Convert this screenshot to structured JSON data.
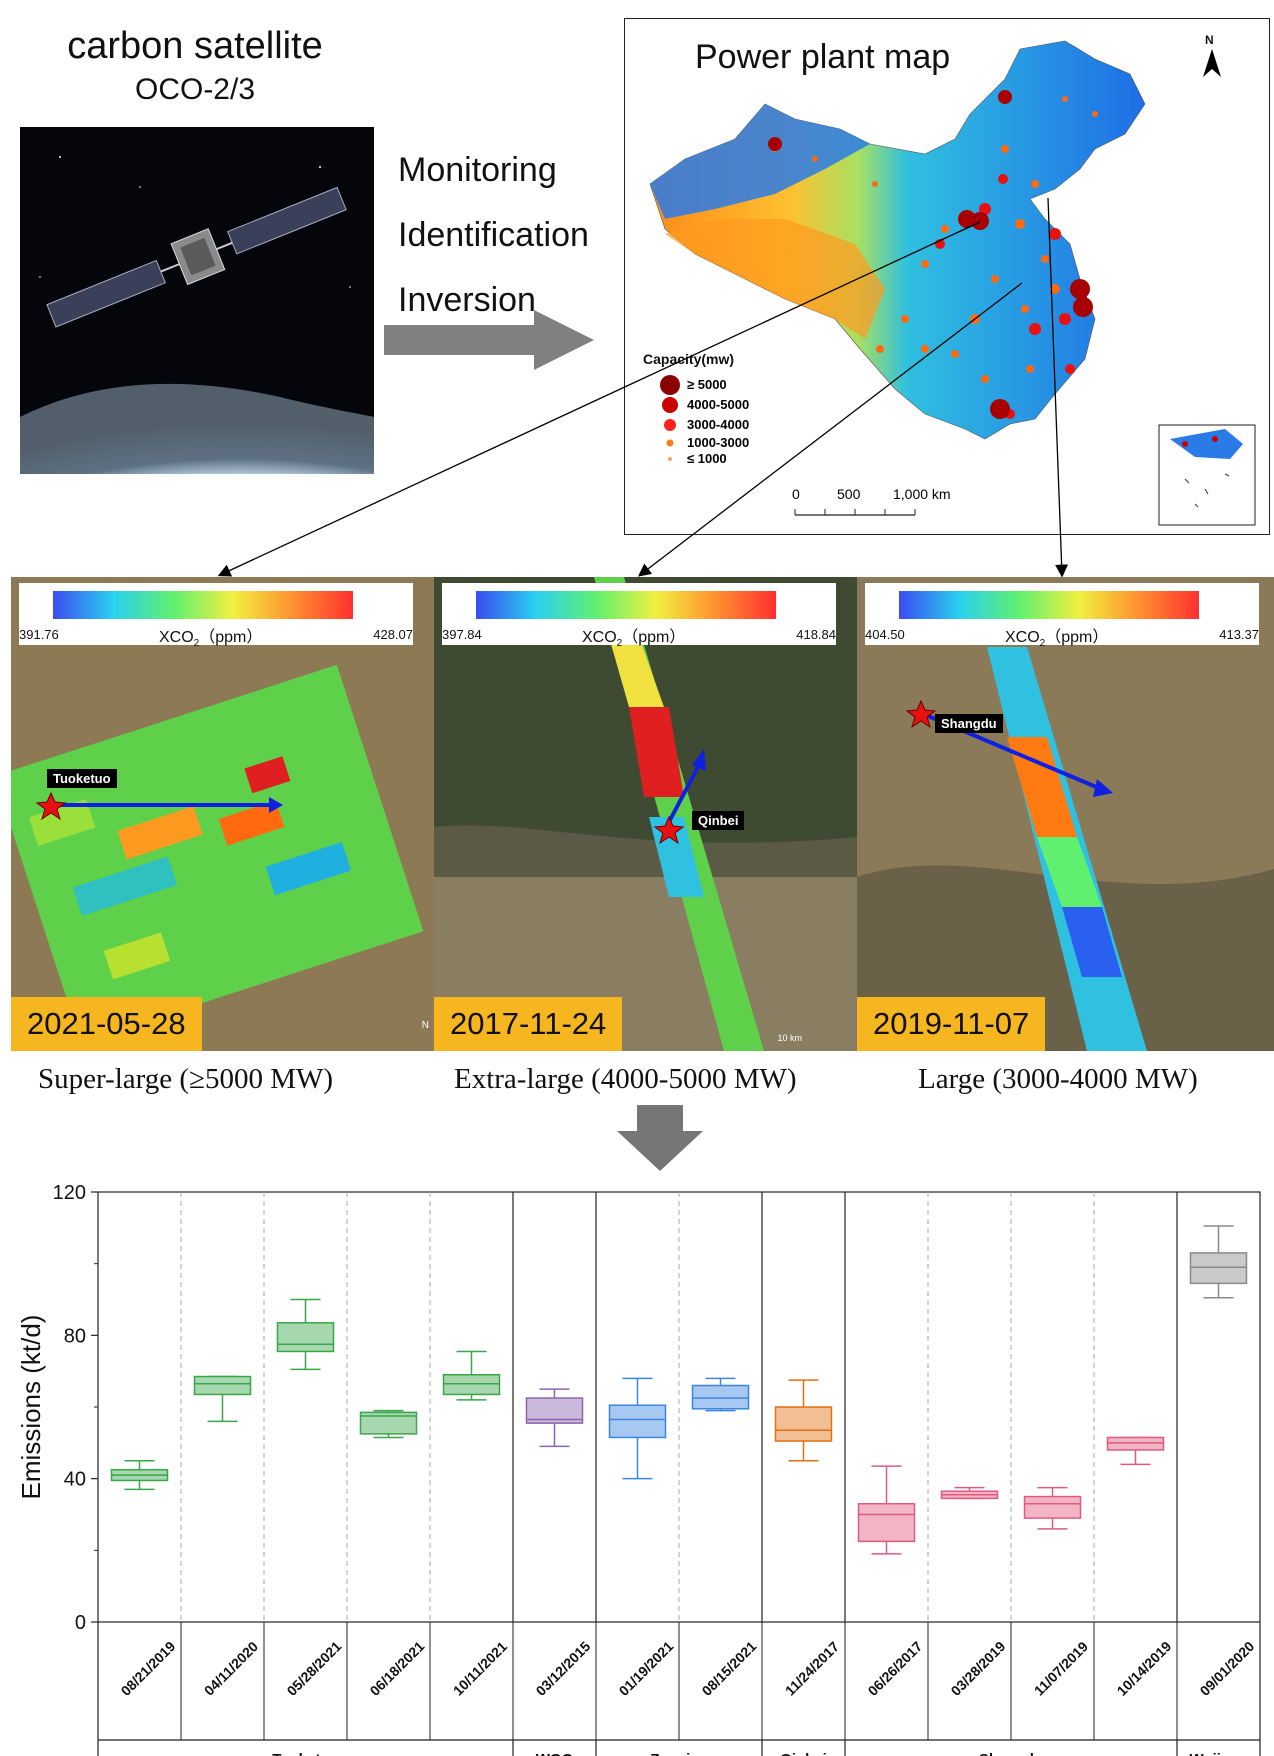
{
  "satellite": {
    "title": "carbon satellite",
    "subtitle": "OCO-2/3"
  },
  "process_steps": [
    "Monitoring",
    "Identification",
    "Inversion"
  ],
  "map": {
    "title": "Power plant map",
    "north_label": "N",
    "legend_title": "Capacity(mw)",
    "legend_items": [
      "≥ 5000",
      "4000-5000",
      "3000-4000",
      "1000-3000",
      "≤ 1000"
    ],
    "legend_colors": [
      "#8b0000",
      "#cc0000",
      "#ff2020",
      "#ff7a1a",
      "#ffa060"
    ],
    "scale_labels": [
      "0",
      "500",
      "1,000 km"
    ]
  },
  "panels": [
    {
      "date": "2021-05-28",
      "plant": "Tuoketuo",
      "cb_min": "391.76",
      "cb_max": "428.07",
      "caption": "Super-large  (≥5000 MW)"
    },
    {
      "date": "2017-11-24",
      "plant": "Qinbei",
      "cb_min": "397.84",
      "cb_max": "418.84",
      "caption": "Extra-large (4000-5000 MW)"
    },
    {
      "date": "2019-11-07",
      "plant": "Shangdu",
      "cb_min": "404.50",
      "cb_max": "413.37",
      "caption": "Large (3000-4000 MW)"
    }
  ],
  "colorbar_label": "XCO",
  "colorbar_sub": "2",
  "colorbar_unit": "（ppm）",
  "scalebar_label": "10 km",
  "chart_data": {
    "type": "box",
    "ylabel": "Emissions (kt/d)",
    "ylim": [
      0,
      120
    ],
    "yticks": [
      0,
      40,
      80,
      120
    ],
    "categories": [
      "08/21/2019",
      "04/11/2020",
      "05/28/2021",
      "06/18/2021",
      "10/11/2021",
      "03/12/2015",
      "01/19/2021",
      "08/15/2021",
      "11/24/2017",
      "06/26/2017",
      "03/28/2019",
      "11/07/2019",
      "10/14/2019",
      "09/01/2020"
    ],
    "groups": [
      {
        "name": "Tuoketuo",
        "count": 5
      },
      {
        "name": "WGQ",
        "count": 1
      },
      {
        "name": "Zouxian",
        "count": 2
      },
      {
        "name": "Qinbei",
        "count": 1
      },
      {
        "name": "Shangdu",
        "count": 4
      },
      {
        "name": "Wujiaqu",
        "count": 1
      }
    ],
    "boxes": [
      {
        "min": 37,
        "q1": 39.5,
        "median": 41,
        "q3": 42.5,
        "max": 45,
        "color": "#3aa64a"
      },
      {
        "min": 56,
        "q1": 63.5,
        "median": 66.5,
        "q3": 68.5,
        "max": 68.5,
        "color": "#3aa64a"
      },
      {
        "min": 70.5,
        "q1": 75.5,
        "median": 77.5,
        "q3": 83.5,
        "max": 90,
        "color": "#3aa64a"
      },
      {
        "min": 51.5,
        "q1": 52.5,
        "median": 57.5,
        "q3": 58.5,
        "max": 59,
        "color": "#3aa64a"
      },
      {
        "min": 62,
        "q1": 63.5,
        "median": 66.5,
        "q3": 69,
        "max": 75.5,
        "color": "#3aa64a"
      },
      {
        "min": 49,
        "q1": 55.5,
        "median": 56.5,
        "q3": 62.5,
        "max": 65,
        "color": "#8c63b0"
      },
      {
        "min": 40,
        "q1": 51.5,
        "median": 56.5,
        "q3": 60.5,
        "max": 68,
        "color": "#3b86e0"
      },
      {
        "min": 59,
        "q1": 59.5,
        "median": 62.5,
        "q3": 66,
        "max": 68,
        "color": "#3b86e0"
      },
      {
        "min": 45,
        "q1": 50.5,
        "median": 53.5,
        "q3": 60,
        "max": 67.5,
        "color": "#e07010"
      },
      {
        "min": 19,
        "q1": 22.5,
        "median": 30,
        "q3": 33,
        "max": 43.5,
        "color": "#e05a80"
      },
      {
        "min": 34.5,
        "q1": 34.5,
        "median": 35.5,
        "q3": 36.5,
        "max": 37.5,
        "color": "#e05a80"
      },
      {
        "min": 26,
        "q1": 29,
        "median": 33,
        "q3": 35,
        "max": 37.5,
        "color": "#e05a80"
      },
      {
        "min": 44,
        "q1": 48,
        "median": 50,
        "q3": 51.5,
        "max": 51.5,
        "color": "#e05a80"
      },
      {
        "min": 90.5,
        "q1": 94.5,
        "median": 99,
        "q3": 103,
        "max": 110.5,
        "color": "#8a8a8a"
      }
    ]
  }
}
